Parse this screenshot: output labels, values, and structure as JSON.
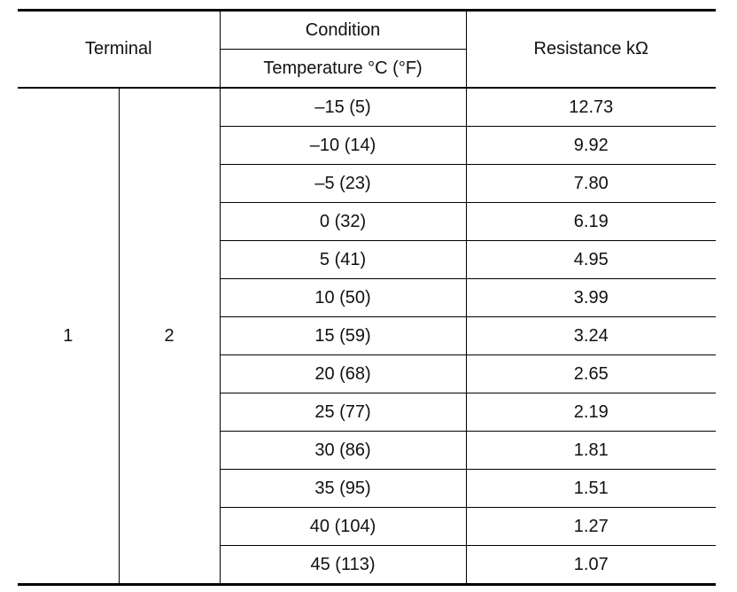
{
  "table": {
    "headers": {
      "terminal": "Terminal",
      "condition": "Condition",
      "temperature": "Temperature °C (°F)",
      "resistance": "Resistance kΩ"
    },
    "terminal_a": "1",
    "terminal_b": "2",
    "rows": [
      {
        "temperature": "–15 (5)",
        "resistance": "12.73"
      },
      {
        "temperature": "–10 (14)",
        "resistance": "9.92"
      },
      {
        "temperature": "–5 (23)",
        "resistance": "7.80"
      },
      {
        "temperature": "0 (32)",
        "resistance": "6.19"
      },
      {
        "temperature": "5 (41)",
        "resistance": "4.95"
      },
      {
        "temperature": "10 (50)",
        "resistance": "3.99"
      },
      {
        "temperature": "15 (59)",
        "resistance": "3.24"
      },
      {
        "temperature": "20 (68)",
        "resistance": "2.65"
      },
      {
        "temperature": "25 (77)",
        "resistance": "2.19"
      },
      {
        "temperature": "30 (86)",
        "resistance": "1.81"
      },
      {
        "temperature": "35 (95)",
        "resistance": "1.51"
      },
      {
        "temperature": "40 (104)",
        "resistance": "1.27"
      },
      {
        "temperature": "45 (113)",
        "resistance": "1.07"
      }
    ]
  }
}
